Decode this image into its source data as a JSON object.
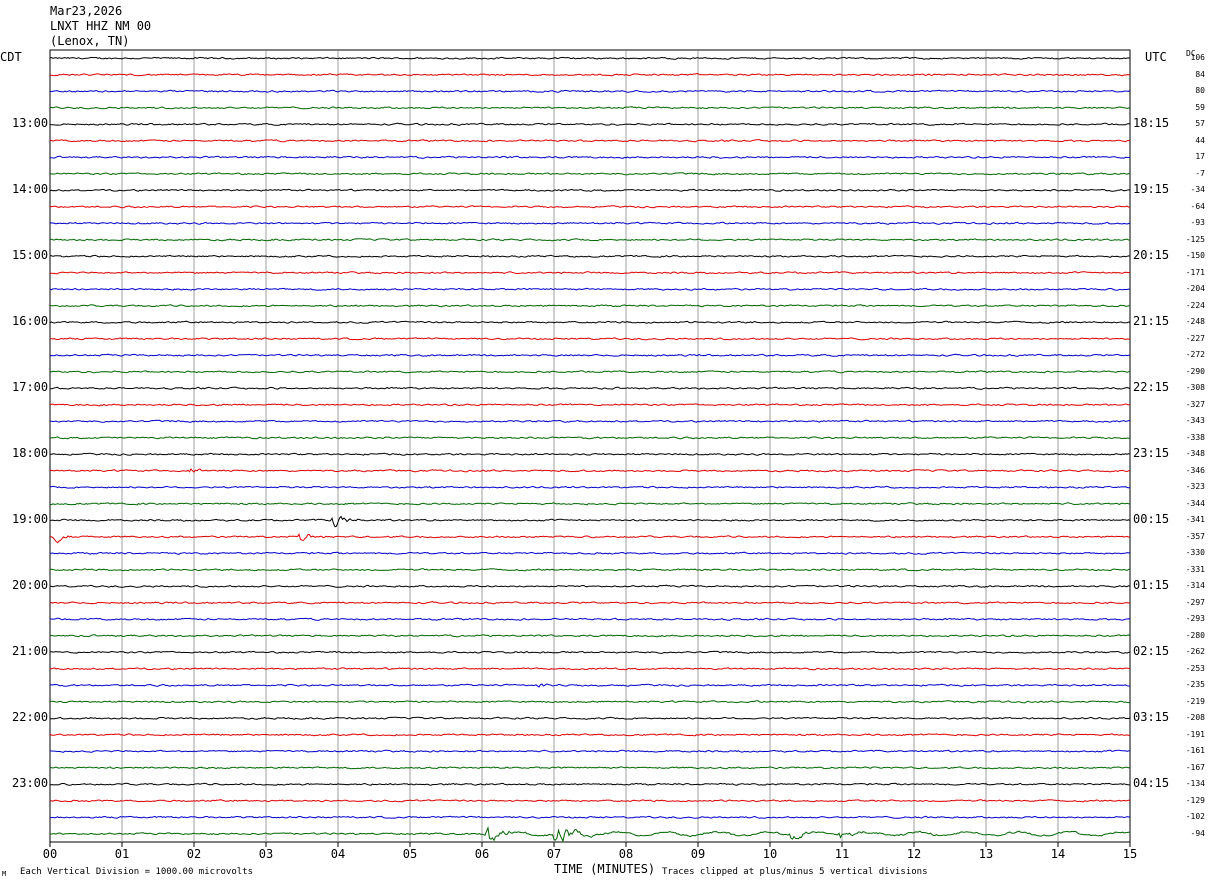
{
  "header": {
    "date": "Mar23,2026",
    "station": "LNXT HHZ NM 00",
    "location": "(Lenox, TN)"
  },
  "left_axis_label": "CDT",
  "right_axis_label": "UTC",
  "dc_label": "DC",
  "footer": {
    "scale_note": "Each Vertical Division = 1000.00 microvolts",
    "clip_note": "Traces clipped at plus/minus 5 vertical divisions",
    "corner_mark": "M"
  },
  "colors": {
    "trace_cycle": [
      "#000000",
      "#dd0000",
      "#0000cc",
      "#006600"
    ],
    "grid": "#888888"
  },
  "chart_data": {
    "type": "line",
    "title": "",
    "xlabel": "TIME (MINUTES)",
    "xlim": [
      0,
      15
    ],
    "x_ticks": [
      "00",
      "01",
      "02",
      "03",
      "04",
      "05",
      "06",
      "07",
      "08",
      "09",
      "10",
      "11",
      "12",
      "13",
      "14",
      "15"
    ],
    "grid": true,
    "rows_per_hour": 4,
    "minutes_per_row": 15,
    "row_count": 48,
    "left_hour_labels": [
      "13:00",
      "14:00",
      "15:00",
      "16:00",
      "17:00",
      "18:00",
      "19:00",
      "20:00",
      "21:00",
      "22:00",
      "23:00"
    ],
    "right_hour_labels": [
      "18:15",
      "19:15",
      "20:15",
      "21:15",
      "22:15",
      "23:15",
      "00:15",
      "01:15",
      "02:15",
      "03:15",
      "04:15"
    ],
    "dc_offsets": [
      "106",
      "84",
      "80",
      "59",
      "57",
      "44",
      "17",
      "-7",
      "-34",
      "-64",
      "-93",
      "-125",
      "-150",
      "-171",
      "-204",
      "-224",
      "-248",
      "-227",
      "-272",
      "-290",
      "-308",
      "-327",
      "-343",
      "-338",
      "-348",
      "-346",
      "-323",
      "-344",
      "-341",
      "-357",
      "-330",
      "-331",
      "-314",
      "-297",
      "-293",
      "-280",
      "-262",
      "-253",
      "-235",
      "-219",
      "-208",
      "-191",
      "-161",
      "-167",
      "-134",
      "-129",
      "-102",
      "-94"
    ],
    "events": [
      {
        "row": 28,
        "minute": 3.95,
        "amplitude": 1.2
      },
      {
        "row": 29,
        "minute": 0.1,
        "amplitude": 0.9
      },
      {
        "row": 29,
        "minute": 3.45,
        "amplitude": 1.3
      },
      {
        "row": 25,
        "minute": 1.95,
        "amplitude": 0.6
      },
      {
        "row": 38,
        "minute": 6.8,
        "amplitude": 0.6
      },
      {
        "row": 47,
        "minute": 6.1,
        "amplitude": 1.6
      },
      {
        "row": 47,
        "minute": 7.05,
        "amplitude": 2.6
      },
      {
        "row": 47,
        "minute": 10.3,
        "amplitude": 1.0
      },
      {
        "row": 47,
        "minute": 11.0,
        "amplitude": 1.0
      }
    ]
  }
}
